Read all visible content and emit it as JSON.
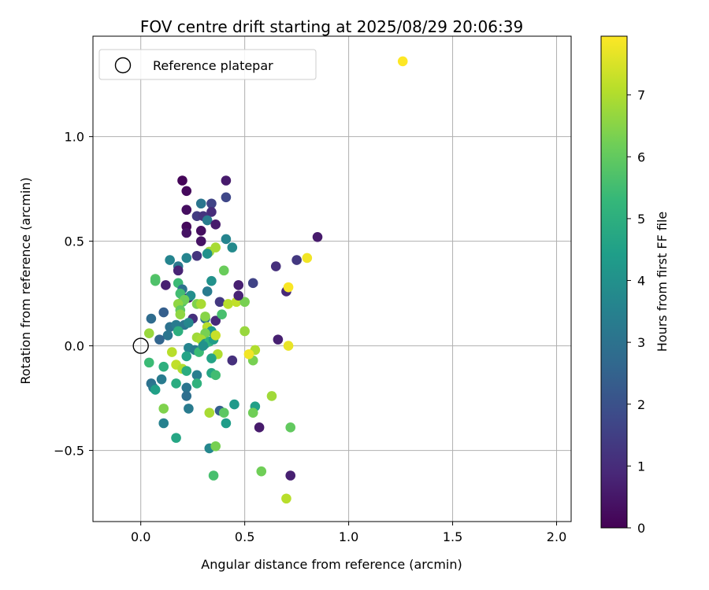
{
  "chart_data": {
    "type": "scatter",
    "title": "FOV centre drift starting at 2025/08/29 20:06:39",
    "xlabel": "Angular distance from reference (arcmin)",
    "ylabel": "Rotation from reference (arcmin)",
    "xlim": [
      -0.23,
      2.07
    ],
    "ylim": [
      -0.84,
      1.48
    ],
    "xticks": [
      0.0,
      0.5,
      1.0,
      1.5,
      2.0
    ],
    "xtick_labels": [
      "0.0",
      "0.5",
      "1.0",
      "1.5",
      "2.0"
    ],
    "yticks": [
      -0.5,
      0.0,
      0.5,
      1.0
    ],
    "ytick_labels": [
      "−0.5",
      "0.0",
      "0.5",
      "1.0"
    ],
    "grid": true,
    "legend": {
      "placement": "top-left",
      "entries": [
        "Reference platepar"
      ]
    },
    "reference_point": {
      "x": 0.0,
      "y": 0.0,
      "label": "Reference platepar"
    },
    "colorbar": {
      "label": "Hours from first FF file",
      "range": [
        0,
        7.95
      ],
      "ticks": [
        0,
        1,
        2,
        3,
        4,
        5,
        6,
        7
      ],
      "colormap": "viridis"
    },
    "colors": {
      "grid": "#b0b0b0",
      "viridis": [
        "#440154",
        "#482878",
        "#3e4989",
        "#31688e",
        "#26828e",
        "#1f9e89",
        "#35b779",
        "#6ece58",
        "#b5de2b",
        "#fde725"
      ]
    },
    "points": [
      {
        "x": 0.2,
        "y": 0.79,
        "t": 0.1
      },
      {
        "x": 0.22,
        "y": 0.74,
        "t": 0.2
      },
      {
        "x": 0.41,
        "y": 0.79,
        "t": 0.6
      },
      {
        "x": 0.29,
        "y": 0.68,
        "t": 3.1
      },
      {
        "x": 0.34,
        "y": 0.68,
        "t": 1.6
      },
      {
        "x": 0.22,
        "y": 0.65,
        "t": 0.3
      },
      {
        "x": 0.34,
        "y": 0.64,
        "t": 1.0
      },
      {
        "x": 0.27,
        "y": 0.62,
        "t": 1.4
      },
      {
        "x": 0.3,
        "y": 0.62,
        "t": 1.2
      },
      {
        "x": 0.41,
        "y": 0.71,
        "t": 1.7
      },
      {
        "x": 0.32,
        "y": 0.6,
        "t": 3.3
      },
      {
        "x": 0.22,
        "y": 0.57,
        "t": 0.2
      },
      {
        "x": 0.36,
        "y": 0.58,
        "t": 0.6
      },
      {
        "x": 0.22,
        "y": 0.54,
        "t": 0.4
      },
      {
        "x": 0.29,
        "y": 0.55,
        "t": 0.3
      },
      {
        "x": 0.29,
        "y": 0.5,
        "t": 0.4
      },
      {
        "x": 0.41,
        "y": 0.51,
        "t": 3.6
      },
      {
        "x": 0.44,
        "y": 0.47,
        "t": 3.8
      },
      {
        "x": 0.33,
        "y": 0.45,
        "t": 6.8
      },
      {
        "x": 0.36,
        "y": 0.47,
        "t": 6.9
      },
      {
        "x": 0.32,
        "y": 0.44,
        "t": 4.0
      },
      {
        "x": 0.14,
        "y": 0.41,
        "t": 3.6
      },
      {
        "x": 0.22,
        "y": 0.42,
        "t": 3.6
      },
      {
        "x": 0.27,
        "y": 0.43,
        "t": 1.2
      },
      {
        "x": 0.18,
        "y": 0.38,
        "t": 3.2
      },
      {
        "x": 0.18,
        "y": 0.36,
        "t": 0.8
      },
      {
        "x": 0.4,
        "y": 0.36,
        "t": 6.1
      },
      {
        "x": 0.07,
        "y": 0.32,
        "t": 5.8
      },
      {
        "x": 0.07,
        "y": 0.31,
        "t": 5.7
      },
      {
        "x": 0.34,
        "y": 0.31,
        "t": 4.0
      },
      {
        "x": 0.12,
        "y": 0.29,
        "t": 0.7
      },
      {
        "x": 0.18,
        "y": 0.3,
        "t": 5.4
      },
      {
        "x": 0.2,
        "y": 0.27,
        "t": 3.0
      },
      {
        "x": 0.32,
        "y": 0.26,
        "t": 3.3
      },
      {
        "x": 0.19,
        "y": 0.25,
        "t": 5.5
      },
      {
        "x": 0.23,
        "y": 0.23,
        "t": 0.6
      },
      {
        "x": 0.2,
        "y": 0.21,
        "t": 5.7
      },
      {
        "x": 0.24,
        "y": 0.24,
        "t": 3.9
      },
      {
        "x": 0.21,
        "y": 0.22,
        "t": 6.2
      },
      {
        "x": 0.18,
        "y": 0.2,
        "t": 6.6
      },
      {
        "x": 0.27,
        "y": 0.2,
        "t": 6.4
      },
      {
        "x": 0.29,
        "y": 0.2,
        "t": 6.9
      },
      {
        "x": 0.38,
        "y": 0.21,
        "t": 1.3
      },
      {
        "x": 0.42,
        "y": 0.2,
        "t": 7.1
      },
      {
        "x": 0.46,
        "y": 0.21,
        "t": 7.2
      },
      {
        "x": 0.5,
        "y": 0.21,
        "t": 6.3
      },
      {
        "x": 0.47,
        "y": 0.24,
        "t": 0.8
      },
      {
        "x": 0.47,
        "y": 0.29,
        "t": 0.7
      },
      {
        "x": 0.54,
        "y": 0.3,
        "t": 1.6
      },
      {
        "x": 0.65,
        "y": 0.38,
        "t": 1.1
      },
      {
        "x": 0.7,
        "y": 0.26,
        "t": 0.9
      },
      {
        "x": 0.71,
        "y": 0.28,
        "t": 7.9
      },
      {
        "x": 0.75,
        "y": 0.41,
        "t": 1.3
      },
      {
        "x": 0.8,
        "y": 0.42,
        "t": 7.8
      },
      {
        "x": 0.85,
        "y": 0.52,
        "t": 0.6
      },
      {
        "x": 1.26,
        "y": 1.36,
        "t": 7.95
      },
      {
        "x": 0.11,
        "y": 0.16,
        "t": 2.4
      },
      {
        "x": 0.05,
        "y": 0.13,
        "t": 2.8
      },
      {
        "x": 0.19,
        "y": 0.17,
        "t": 6.0
      },
      {
        "x": 0.19,
        "y": 0.15,
        "t": 6.6
      },
      {
        "x": 0.25,
        "y": 0.13,
        "t": 1.1
      },
      {
        "x": 0.31,
        "y": 0.13,
        "t": 3.0
      },
      {
        "x": 0.31,
        "y": 0.14,
        "t": 6.5
      },
      {
        "x": 0.36,
        "y": 0.12,
        "t": 0.9
      },
      {
        "x": 0.39,
        "y": 0.15,
        "t": 5.6
      },
      {
        "x": 0.14,
        "y": 0.09,
        "t": 3.0
      },
      {
        "x": 0.17,
        "y": 0.1,
        "t": 3.3
      },
      {
        "x": 0.21,
        "y": 0.1,
        "t": 3.1
      },
      {
        "x": 0.23,
        "y": 0.11,
        "t": 3.7
      },
      {
        "x": 0.18,
        "y": 0.07,
        "t": 5.0
      },
      {
        "x": 0.32,
        "y": 0.09,
        "t": 7.1
      },
      {
        "x": 0.34,
        "y": 0.07,
        "t": 4.2
      },
      {
        "x": 0.31,
        "y": 0.06,
        "t": 6.3
      },
      {
        "x": 0.5,
        "y": 0.07,
        "t": 6.7
      },
      {
        "x": 0.13,
        "y": 0.05,
        "t": 3.1
      },
      {
        "x": 0.04,
        "y": 0.06,
        "t": 6.7
      },
      {
        "x": 0.09,
        "y": 0.03,
        "t": 2.6
      },
      {
        "x": 0.27,
        "y": 0.04,
        "t": 6.8
      },
      {
        "x": 0.29,
        "y": 0.03,
        "t": 6.9
      },
      {
        "x": 0.31,
        "y": 0.01,
        "t": 4.1
      },
      {
        "x": 0.33,
        "y": 0.02,
        "t": 5.1
      },
      {
        "x": 0.35,
        "y": 0.03,
        "t": 4.4
      },
      {
        "x": 0.36,
        "y": 0.05,
        "t": 7.3
      },
      {
        "x": 0.23,
        "y": -0.01,
        "t": 3.6
      },
      {
        "x": 0.26,
        "y": -0.02,
        "t": 3.3
      },
      {
        "x": 0.28,
        "y": -0.03,
        "t": 5.4
      },
      {
        "x": 0.3,
        "y": 0.0,
        "t": 4.0
      },
      {
        "x": 0.37,
        "y": -0.04,
        "t": 7.0
      },
      {
        "x": 0.44,
        "y": -0.07,
        "t": 1.1
      },
      {
        "x": 0.55,
        "y": -0.02,
        "t": 7.0
      },
      {
        "x": 0.54,
        "y": -0.07,
        "t": 6.3
      },
      {
        "x": 0.52,
        "y": -0.04,
        "t": 7.8
      },
      {
        "x": 0.66,
        "y": 0.03,
        "t": 0.7
      },
      {
        "x": 0.71,
        "y": 0.0,
        "t": 7.7
      },
      {
        "x": 0.22,
        "y": -0.05,
        "t": 4.6
      },
      {
        "x": 0.34,
        "y": -0.06,
        "t": 4.6
      },
      {
        "x": 0.04,
        "y": -0.08,
        "t": 5.4
      },
      {
        "x": 0.15,
        "y": -0.03,
        "t": 7.1
      },
      {
        "x": 0.11,
        "y": -0.1,
        "t": 5.0
      },
      {
        "x": 0.17,
        "y": -0.09,
        "t": 7.2
      },
      {
        "x": 0.2,
        "y": -0.11,
        "t": 7.0
      },
      {
        "x": 0.22,
        "y": -0.12,
        "t": 4.9
      },
      {
        "x": 0.27,
        "y": -0.14,
        "t": 3.4
      },
      {
        "x": 0.34,
        "y": -0.13,
        "t": 4.7
      },
      {
        "x": 0.36,
        "y": -0.14,
        "t": 5.5
      },
      {
        "x": 0.1,
        "y": -0.16,
        "t": 3.3
      },
      {
        "x": 0.17,
        "y": -0.18,
        "t": 4.9
      },
      {
        "x": 0.27,
        "y": -0.18,
        "t": 5.1
      },
      {
        "x": 0.05,
        "y": -0.18,
        "t": 3.0
      },
      {
        "x": 0.06,
        "y": -0.2,
        "t": 3.2
      },
      {
        "x": 0.07,
        "y": -0.21,
        "t": 4.5
      },
      {
        "x": 0.22,
        "y": -0.2,
        "t": 3.1
      },
      {
        "x": 0.22,
        "y": -0.24,
        "t": 2.9
      },
      {
        "x": 0.11,
        "y": -0.3,
        "t": 6.4
      },
      {
        "x": 0.23,
        "y": -0.3,
        "t": 3.3
      },
      {
        "x": 0.33,
        "y": -0.32,
        "t": 6.9
      },
      {
        "x": 0.38,
        "y": -0.31,
        "t": 2.4
      },
      {
        "x": 0.4,
        "y": -0.32,
        "t": 5.9
      },
      {
        "x": 0.45,
        "y": -0.28,
        "t": 4.3
      },
      {
        "x": 0.55,
        "y": -0.29,
        "t": 4.5
      },
      {
        "x": 0.54,
        "y": -0.32,
        "t": 6.2
      },
      {
        "x": 0.63,
        "y": -0.24,
        "t": 6.8
      },
      {
        "x": 0.11,
        "y": -0.37,
        "t": 3.5
      },
      {
        "x": 0.41,
        "y": -0.37,
        "t": 4.4
      },
      {
        "x": 0.57,
        "y": -0.39,
        "t": 0.6
      },
      {
        "x": 0.72,
        "y": -0.39,
        "t": 6.0
      },
      {
        "x": 0.17,
        "y": -0.44,
        "t": 4.7
      },
      {
        "x": 0.33,
        "y": -0.49,
        "t": 3.7
      },
      {
        "x": 0.36,
        "y": -0.48,
        "t": 6.3
      },
      {
        "x": 0.35,
        "y": -0.62,
        "t": 5.6
      },
      {
        "x": 0.58,
        "y": -0.6,
        "t": 6.2
      },
      {
        "x": 0.72,
        "y": -0.62,
        "t": 0.7
      },
      {
        "x": 0.7,
        "y": -0.73,
        "t": 7.1
      }
    ]
  }
}
